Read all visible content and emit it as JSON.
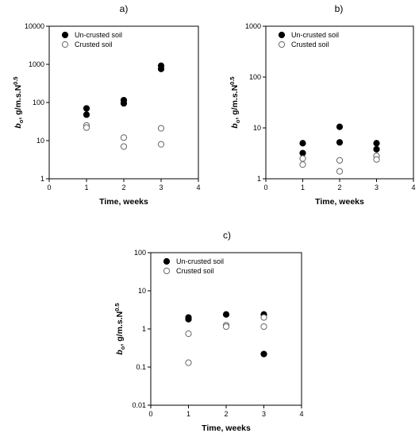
{
  "chart_data": [
    {
      "type": "scatter",
      "title": "a)",
      "xlabel": "Time, weeks",
      "ylabel": "b0, g/m.s.N0.5",
      "ylabel_parts": {
        "main": "b",
        "sub": "o",
        "rest": ", g/m.s.N",
        "sup": "0.5"
      },
      "xlim": [
        0,
        4
      ],
      "ylim": [
        1,
        10000
      ],
      "yscale": "log",
      "xticks": [
        "0",
        "1",
        "2",
        "3",
        "4"
      ],
      "yticks": [
        "1",
        "10",
        "100",
        "1000",
        "10000"
      ],
      "legend": "top-left",
      "series": [
        {
          "name": "Un-crusted soil",
          "marker": "filled",
          "x": [
            1,
            1,
            2,
            2,
            3,
            3
          ],
          "y": [
            70,
            48,
            115,
            95,
            920,
            760
          ]
        },
        {
          "name": "Crusted soil",
          "marker": "open",
          "x": [
            1,
            1,
            2,
            2,
            3,
            3
          ],
          "y": [
            25,
            22,
            12,
            7,
            21,
            8
          ]
        }
      ]
    },
    {
      "type": "scatter",
      "title": "b)",
      "xlabel": "Time, weeks",
      "ylabel": "b0, g/m.s.N0.5",
      "ylabel_parts": {
        "main": "b",
        "sub": "o",
        "rest": ", g/m.s.N",
        "sup": "0.5"
      },
      "xlim": [
        0,
        4
      ],
      "ylim": [
        1,
        1000
      ],
      "yscale": "log",
      "xticks": [
        "0",
        "1",
        "2",
        "3",
        "4"
      ],
      "yticks": [
        "1",
        "10",
        "100",
        "1000"
      ],
      "legend": "top-left",
      "series": [
        {
          "name": "Un-crusted soil",
          "marker": "filled",
          "x": [
            1,
            1,
            2,
            2,
            3,
            3
          ],
          "y": [
            5,
            3.2,
            10.5,
            5.2,
            5,
            3.8
          ]
        },
        {
          "name": "Crusted soil",
          "marker": "open",
          "x": [
            1,
            1,
            2,
            2,
            3,
            3
          ],
          "y": [
            2.5,
            1.9,
            2.3,
            1.4,
            2.8,
            2.4
          ]
        }
      ]
    },
    {
      "type": "scatter",
      "title": "c)",
      "xlabel": "Time, weeks",
      "ylabel": "b0, g/m.s.N0.5",
      "ylabel_parts": {
        "main": "b",
        "sub": "o",
        "rest": ", g/m.s.N",
        "sup": "0.5"
      },
      "xlim": [
        0,
        4
      ],
      "ylim": [
        0.01,
        100
      ],
      "yscale": "log",
      "xticks": [
        "0",
        "1",
        "2",
        "3",
        "4"
      ],
      "yticks": [
        "0.01",
        "0.1",
        "1",
        "10",
        "100"
      ],
      "legend": "top-left",
      "series": [
        {
          "name": "Un-crusted soil",
          "marker": "filled",
          "x": [
            1,
            1,
            2,
            3,
            3
          ],
          "y": [
            2.0,
            1.8,
            2.4,
            2.4,
            0.22
          ]
        },
        {
          "name": "Crusted soil",
          "marker": "open",
          "x": [
            1,
            1,
            2,
            2,
            3,
            3
          ],
          "y": [
            0.75,
            0.13,
            1.25,
            1.15,
            2.0,
            1.15
          ]
        }
      ]
    }
  ]
}
